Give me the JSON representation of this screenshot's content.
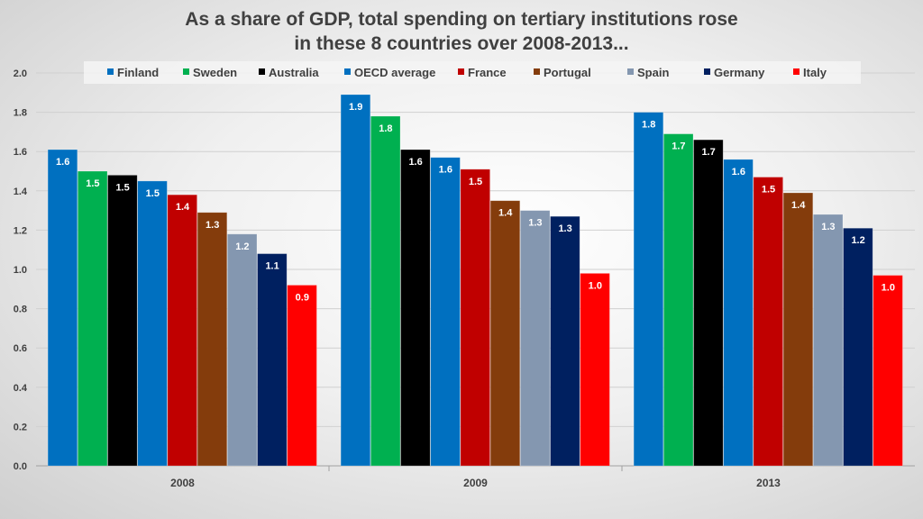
{
  "chart_data": {
    "type": "bar",
    "title_lines": [
      "As a share of GDP, total spending on tertiary institutions rose",
      "in these 8 countries over 2008-2013..."
    ],
    "categories": [
      "2008",
      "2009",
      "2013"
    ],
    "ylim": [
      0,
      2.0
    ],
    "yticks": [
      "0.0",
      "0.2",
      "0.4",
      "0.6",
      "0.8",
      "1.0",
      "1.2",
      "1.4",
      "1.6",
      "1.8",
      "2.0"
    ],
    "grid": true,
    "legend_position": "top",
    "series": [
      {
        "name": "Finland",
        "color": "#0070C0",
        "values": [
          1.61,
          1.89,
          1.8
        ],
        "labels": [
          "1.6",
          "1.9",
          "1.8"
        ]
      },
      {
        "name": "Sweden",
        "color": "#00B050",
        "values": [
          1.5,
          1.78,
          1.69
        ],
        "labels": [
          "1.5",
          "1.8",
          "1.7"
        ]
      },
      {
        "name": "Australia",
        "color": "#000000",
        "values": [
          1.48,
          1.61,
          1.66
        ],
        "labels": [
          "1.5",
          "1.6",
          "1.7"
        ]
      },
      {
        "name": "OECD average",
        "color": "#0070C0",
        "values": [
          1.45,
          1.57,
          1.56
        ],
        "labels": [
          "1.5",
          "1.6",
          "1.6"
        ]
      },
      {
        "name": "France",
        "color": "#C00000",
        "values": [
          1.38,
          1.51,
          1.47
        ],
        "labels": [
          "1.4",
          "1.5",
          "1.5"
        ]
      },
      {
        "name": "Portugal",
        "color": "#843C0C",
        "values": [
          1.29,
          1.35,
          1.39
        ],
        "labels": [
          "1.3",
          "1.4",
          "1.4"
        ]
      },
      {
        "name": "Spain",
        "color": "#8497B0",
        "values": [
          1.18,
          1.3,
          1.28
        ],
        "labels": [
          "1.2",
          "1.3",
          "1.3"
        ]
      },
      {
        "name": "Germany",
        "color": "#002060",
        "values": [
          1.08,
          1.27,
          1.21
        ],
        "labels": [
          "1.1",
          "1.3",
          "1.2"
        ]
      },
      {
        "name": "Italy",
        "color": "#FF0000",
        "values": [
          0.92,
          0.98,
          0.97
        ],
        "labels": [
          "0.9",
          "1.0",
          "1.0"
        ]
      }
    ]
  }
}
